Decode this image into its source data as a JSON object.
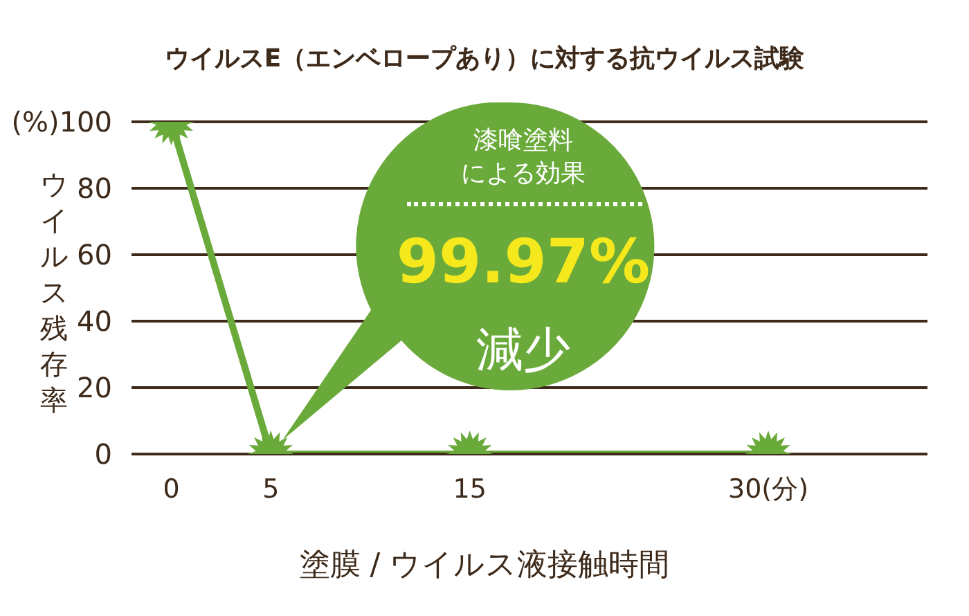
{
  "chart_data": {
    "type": "line",
    "title": "ウイルスE（エンベロープあり）に対する抗ウイルス試験",
    "xlabel": "塗膜 / ウイルス液接触時間",
    "ylabel": "ウイルス残存率",
    "x": [
      0,
      5,
      15,
      30
    ],
    "series": [
      {
        "color": "#6aaa3a",
        "values": [
          100,
          0,
          0,
          0
        ]
      }
    ],
    "xlim": [
      -2,
      38
    ],
    "xticks": [
      0,
      5,
      15,
      {
        "value": 30,
        "label": "30(分)"
      }
    ],
    "ylim": [
      0,
      100
    ],
    "yticks": [
      0,
      20,
      40,
      60,
      80,
      {
        "value": 100,
        "label": "(%)100"
      }
    ],
    "grid": "y",
    "marker": "star",
    "line_style": "solid",
    "annotations": [
      "漆喰塗料",
      "による効果",
      "99.97%",
      "減少"
    ]
  }
}
